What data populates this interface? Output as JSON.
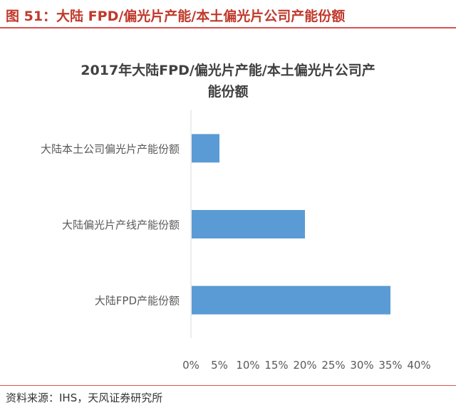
{
  "figure": {
    "title": "图 51：大陆 FPD/偏光片产能/本土偏光片公司产能份额",
    "source": "资料来源：IHS，天风证券研究所"
  },
  "colors": {
    "bar": "#5b9bd5",
    "axis": "#d9d9d9",
    "text": "#595959",
    "accent": "#c0392b"
  },
  "chart_data": {
    "type": "bar",
    "orientation": "horizontal",
    "title_lines": [
      "2017年大陆FPD/偏光片产能/本土偏光片公司产",
      "能份额"
    ],
    "categories": [
      "大陆本土公司偏光片产能份额",
      "大陆偏光片产线产能份额",
      "大陆FPD产能份额"
    ],
    "values": [
      0.05,
      0.2,
      0.35
    ],
    "xlim": [
      0,
      0.4
    ],
    "xticks": [
      "0%",
      "5%",
      "10%",
      "15%",
      "20%",
      "25%",
      "30%",
      "35%",
      "40%"
    ],
    "grid": false,
    "legend": "none"
  }
}
